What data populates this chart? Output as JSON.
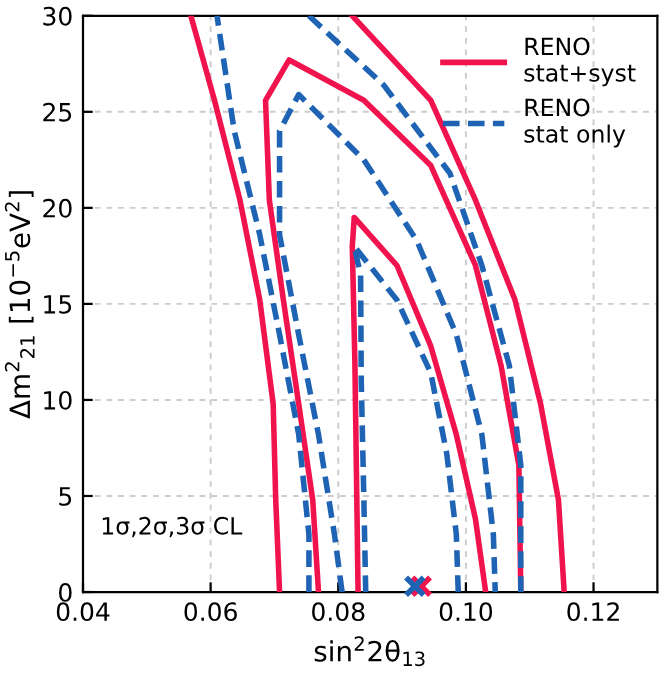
{
  "chart_data": {
    "type": "line",
    "xlabel": "sin$^{2}$2θ$_{13}$",
    "ylabel": "Δm$^{2}$$_{21}$ [10$^{−5}$eV$^{2}$]",
    "xlim": [
      0.04,
      0.13
    ],
    "ylim": [
      0,
      30
    ],
    "xticks": [
      {
        "value": 0.04,
        "label": "0.04"
      },
      {
        "value": 0.06,
        "label": "0.06"
      },
      {
        "value": 0.08,
        "label": "0.08"
      },
      {
        "value": 0.1,
        "label": "0.10"
      },
      {
        "value": 0.12,
        "label": "0.12"
      }
    ],
    "yticks": [
      0,
      5,
      10,
      15,
      20,
      25,
      30
    ],
    "grid": true,
    "legend": "top right",
    "marker": "none",
    "annotations": [
      "1σ,2σ,3σ CL"
    ],
    "series": [
      {
        "name": "RENO\nstat+syst",
        "color": "#f0134d",
        "line_style": "solid",
        "x": [
          0.0831,
          0.0829,
          0.0826,
          0.0822,
          0.0825,
          0.0892,
          0.0945,
          0.0985,
          0.1015,
          0.1031
        ],
        "values": [
          0,
          5,
          12,
          18,
          19.5,
          17.0,
          12.8,
          8.2,
          3.8,
          0
        ]
      },
      {
        "color": "#f0134d",
        "line_style": "solid",
        "x": [
          0.0769,
          0.076,
          0.0738,
          0.0714,
          0.0692,
          0.0686,
          0.0723,
          0.084,
          0.0945,
          0.1015,
          0.1055,
          0.1083,
          0.1086
        ],
        "values": [
          0,
          4.8,
          9.8,
          15.2,
          20.4,
          25.6,
          27.7,
          25.6,
          22.2,
          17.0,
          11.8,
          6.6,
          0
        ]
      },
      {
        "color": "#f0134d",
        "line_style": "solid",
        "x": [
          0.0708,
          0.0702,
          0.0698,
          0.0677,
          0.0646,
          0.0606,
          0.0569,
          null,
          0.0822,
          0.0945,
          0.1015,
          0.1077,
          0.1117,
          0.1145,
          0.1154
        ],
        "values": [
          0,
          4.8,
          9.8,
          15.2,
          20.4,
          25.6,
          30,
          null,
          30,
          25.6,
          20.4,
          15.2,
          9.8,
          4.8,
          0
        ]
      },
      {
        "name": "RENO\nstat only",
        "color": "#1f64b4",
        "line_style": "dashed",
        "x": [
          0.0843,
          0.084,
          0.0836,
          0.0835,
          0.0825,
          0.0892,
          0.0945,
          0.097,
          0.0985,
          0.0988
        ],
        "values": [
          0,
          5,
          11,
          16.5,
          18.0,
          15.2,
          11.4,
          7.2,
          3.0,
          0
        ]
      },
      {
        "color": "#1f64b4",
        "line_style": "dashed",
        "x": [
          0.0806,
          0.0794,
          0.0769,
          0.0738,
          0.0708,
          0.0708,
          0.0738,
          0.084,
          0.0923,
          0.0985,
          0.1025,
          0.1043,
          0.1046
        ],
        "values": [
          0,
          3,
          8.2,
          13.4,
          18.6,
          24,
          25.9,
          22.5,
          18.3,
          13.4,
          8.2,
          3,
          0
        ]
      },
      {
        "color": "#1f64b4",
        "line_style": "dashed",
        "x": [
          0.0754,
          0.0754,
          0.0738,
          0.0708,
          0.0677,
          0.0637,
          0.061,
          null,
          0.0754,
          0.0871,
          0.0975,
          0.1025,
          0.1068,
          0.1086,
          0.1086
        ],
        "values": [
          0,
          3,
          8.2,
          13.4,
          18.6,
          24,
          30,
          null,
          30,
          26.4,
          21.8,
          17,
          11.8,
          6.6,
          0
        ]
      },
      {
        "type": "scatter",
        "marker": "cross",
        "color": "#f0134d",
        "x": [
          0.093
        ],
        "values": [
          0.3
        ]
      },
      {
        "type": "scatter",
        "marker": "cross",
        "color": "#1f64b4",
        "x": [
          0.092
        ],
        "values": [
          0.3
        ]
      }
    ]
  }
}
